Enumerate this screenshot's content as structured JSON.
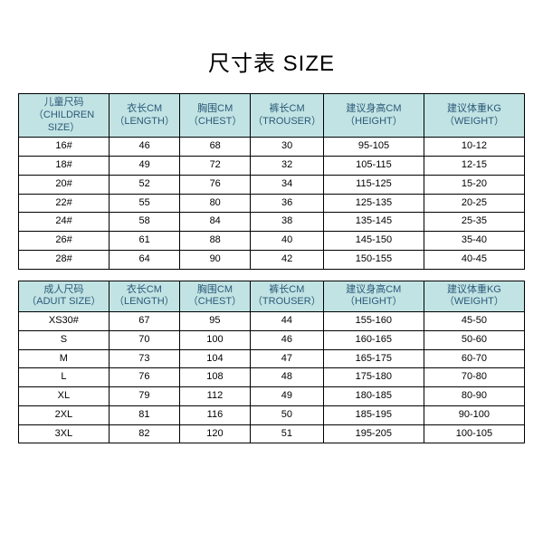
{
  "title": "尺寸表 SIZE",
  "tables": {
    "children": {
      "headers": [
        {
          "zh": "儿童尺码",
          "en": "（CHILDREN SIZE）"
        },
        {
          "zh": "衣长CM",
          "en": "（LENGTH）"
        },
        {
          "zh": "胸围CM",
          "en": "（CHEST）"
        },
        {
          "zh": "裤长CM",
          "en": "（TROUSER）"
        },
        {
          "zh": "建议身高CM",
          "en": "（HEIGHT）"
        },
        {
          "zh": "建议体重KG",
          "en": "（WEIGHT）"
        }
      ],
      "rows": [
        [
          "16#",
          "46",
          "68",
          "30",
          "95-105",
          "10-12"
        ],
        [
          "18#",
          "49",
          "72",
          "32",
          "105-115",
          "12-15"
        ],
        [
          "20#",
          "52",
          "76",
          "34",
          "115-125",
          "15-20"
        ],
        [
          "22#",
          "55",
          "80",
          "36",
          "125-135",
          "20-25"
        ],
        [
          "24#",
          "58",
          "84",
          "38",
          "135-145",
          "25-35"
        ],
        [
          "26#",
          "61",
          "88",
          "40",
          "145-150",
          "35-40"
        ],
        [
          "28#",
          "64",
          "90",
          "42",
          "150-155",
          "40-45"
        ]
      ]
    },
    "adult": {
      "headers": [
        {
          "zh": "成人尺码",
          "en": "（ADUIT SIZE）"
        },
        {
          "zh": "衣长CM",
          "en": "（LENGTH）"
        },
        {
          "zh": "胸围CM",
          "en": "（CHEST）"
        },
        {
          "zh": "裤长CM",
          "en": "（TROUSER）"
        },
        {
          "zh": "建议身高CM",
          "en": "（HEIGHT）"
        },
        {
          "zh": "建议体重KG",
          "en": "（WEIGHT）"
        }
      ],
      "rows": [
        [
          "XS30#",
          "67",
          "95",
          "44",
          "155-160",
          "45-50"
        ],
        [
          "S",
          "70",
          "100",
          "46",
          "160-165",
          "50-60"
        ],
        [
          "M",
          "73",
          "104",
          "47",
          "165-175",
          "60-70"
        ],
        [
          "L",
          "76",
          "108",
          "48",
          "175-180",
          "70-80"
        ],
        [
          "XL",
          "79",
          "112",
          "49",
          "180-185",
          "80-90"
        ],
        [
          "2XL",
          "81",
          "116",
          "50",
          "185-195",
          "90-100"
        ],
        [
          "3XL",
          "82",
          "120",
          "51",
          "195-205",
          "100-105"
        ]
      ]
    }
  },
  "styling": {
    "header_bg": "#c2e3e3",
    "header_color": "#2a5a7a",
    "border_color": "#000000",
    "font_family": "Microsoft YaHei",
    "title_fontsize": 24,
    "cell_fontsize": 11,
    "col_widths_pct": [
      18,
      14,
      14,
      14,
      20,
      20
    ]
  }
}
